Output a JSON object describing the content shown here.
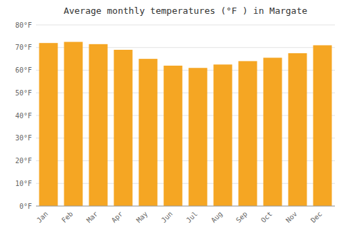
{
  "chart_data": {
    "type": "bar",
    "title": "Average monthly temperatures (°F ) in Margate",
    "categories": [
      "Jan",
      "Feb",
      "Mar",
      "Apr",
      "May",
      "Jun",
      "Jul",
      "Aug",
      "Sep",
      "Oct",
      "Nov",
      "Dec"
    ],
    "values": [
      72,
      72.5,
      71.5,
      69,
      65,
      62,
      61,
      62.5,
      64,
      65.5,
      67.5,
      71
    ],
    "color": "#F5A623",
    "ylim": [
      0,
      80
    ],
    "yticks": [
      {
        "value": 0,
        "label": "0°F"
      },
      {
        "value": 10,
        "label": "10°F"
      },
      {
        "value": 20,
        "label": "20°F"
      },
      {
        "value": 30,
        "label": "30°F"
      },
      {
        "value": 40,
        "label": "40°F"
      },
      {
        "value": 50,
        "label": "50°F"
      },
      {
        "value": 60,
        "label": "60°F"
      },
      {
        "value": 70,
        "label": "70°F"
      },
      {
        "value": 80,
        "label": "80°F"
      }
    ],
    "grid": true
  }
}
